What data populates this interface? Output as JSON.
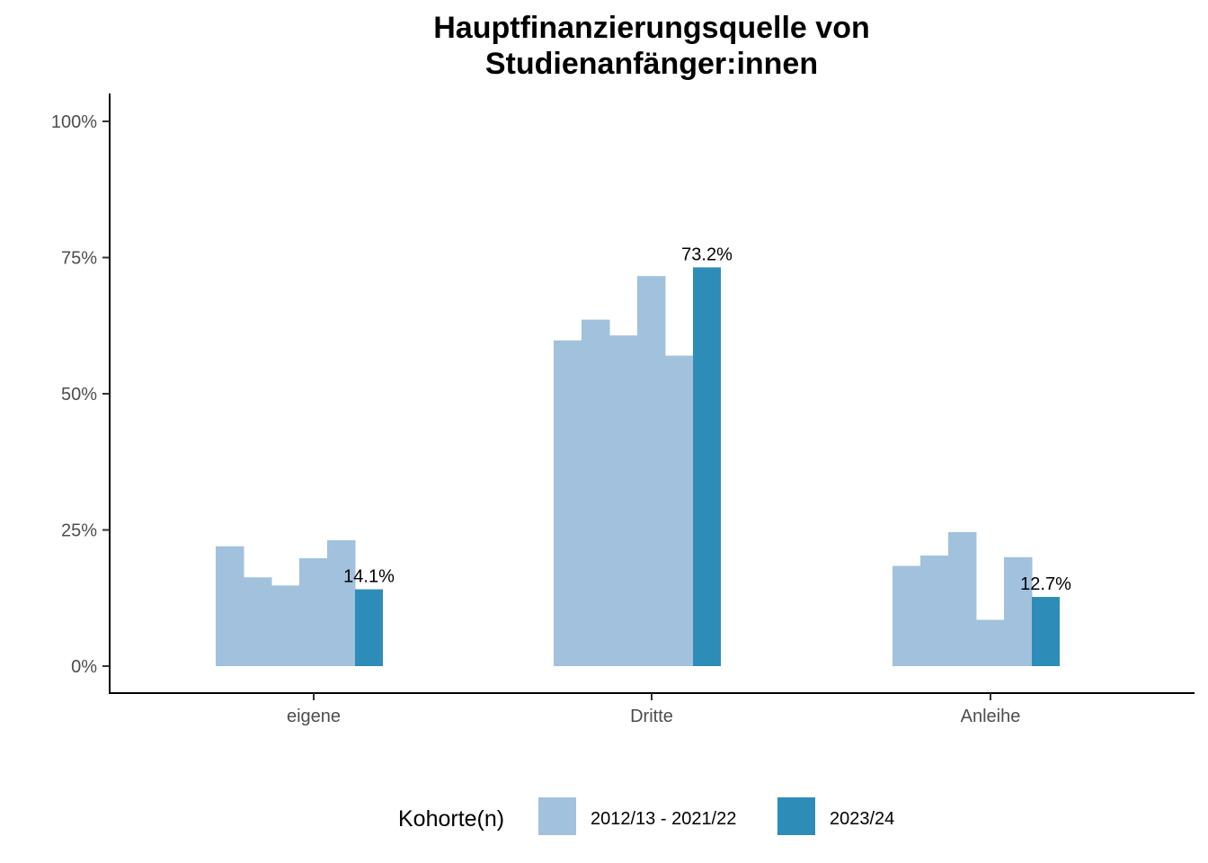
{
  "chart_data": {
    "type": "bar",
    "title_lines": [
      "Hauptfinanzierungsquelle von",
      "Studienanfänger:innen"
    ],
    "xlabel": "",
    "ylabel": "",
    "categories": [
      "eigene",
      "Dritte",
      "Anleihe"
    ],
    "y_ticks": [
      {
        "value": 0,
        "label": "0%"
      },
      {
        "value": 25,
        "label": "25%"
      },
      {
        "value": 50,
        "label": "50%"
      },
      {
        "value": 75,
        "label": "75%"
      },
      {
        "value": 100,
        "label": "100%"
      }
    ],
    "ylim": [
      -5,
      105
    ],
    "grid": false,
    "legend_position": "bottom",
    "legend_title": "Kohorte(n)",
    "series": [
      {
        "name": "2012/13 - 2021/22",
        "color": "#a1c1dd",
        "sub_bars_per_category": 5,
        "values": [
          [
            22.0,
            16.3,
            14.8,
            19.8,
            23.1
          ],
          [
            59.8,
            63.6,
            60.7,
            71.6,
            57.0
          ],
          [
            18.4,
            20.3,
            24.6,
            8.5,
            20.0
          ]
        ]
      },
      {
        "name": "2023/24",
        "color": "#2e8cb8",
        "values": [
          14.1,
          73.2,
          12.7
        ],
        "data_labels": [
          "14.1%",
          "73.2%",
          "12.7%"
        ]
      }
    ]
  }
}
